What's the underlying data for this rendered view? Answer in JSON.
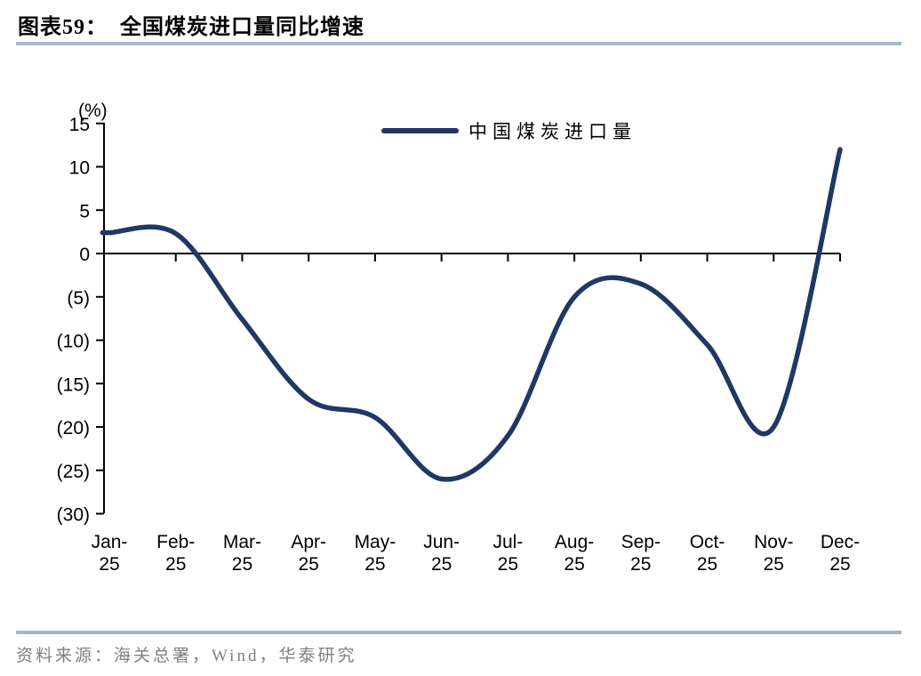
{
  "figure": {
    "title": "图表59：  全国煤炭进口量同比增速",
    "source": "资料来源：海关总署，Wind，华泰研究"
  },
  "chart_data": {
    "type": "line",
    "title": "全国煤炭进口量同比增速",
    "unit_label": "(%)",
    "legend_position": "top-center",
    "grid": false,
    "line_style": "smooth",
    "categories": [
      "Jan-25",
      "Feb-25",
      "Mar-25",
      "Apr-25",
      "May-25",
      "Jun-25",
      "Jul-25",
      "Aug-25",
      "Sep-25",
      "Oct-25",
      "Nov-25",
      "Dec-25"
    ],
    "series": [
      {
        "name": "中国煤炭进口量",
        "color": "#1f3864",
        "values": [
          2.4,
          2.3,
          -7.6,
          -16.8,
          -18.9,
          -26.0,
          -21.0,
          -5.0,
          -3.5,
          -10.5,
          -20.0,
          12.0
        ]
      }
    ],
    "ylim": [
      -30,
      15
    ],
    "ytick_step": 5,
    "y_ticks": [
      15,
      10,
      5,
      0,
      -5,
      -10,
      -15,
      -20,
      -25,
      -30
    ],
    "y_tick_labels": [
      "15",
      "10",
      "5",
      "0",
      "(5)",
      "(10)",
      "(15)",
      "(20)",
      "(25)",
      "(30)"
    ],
    "negative_format": "parentheses",
    "axis_color": "#000000"
  }
}
